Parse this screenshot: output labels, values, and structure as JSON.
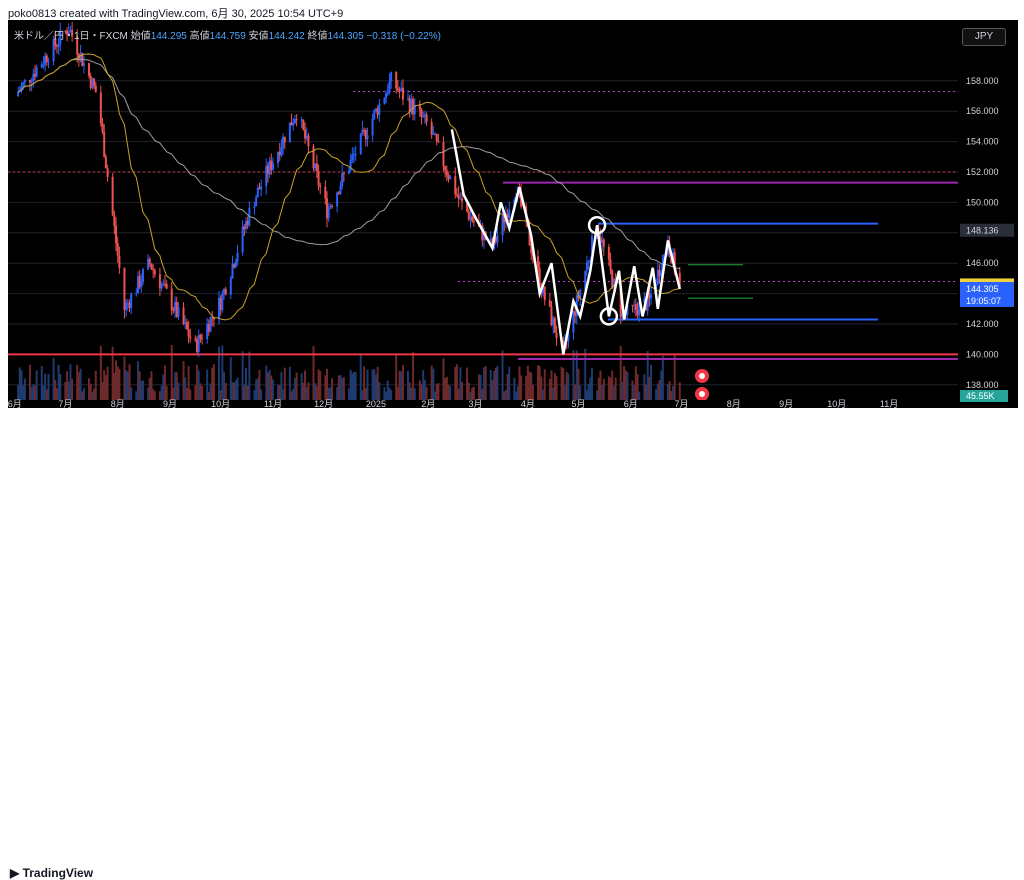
{
  "header": {
    "attribution": "poko0813 created with TradingView.com, 6月 30, 2025 10:54 UTC+9"
  },
  "legend": {
    "symbol": "米ドル／円・1日・FXCM",
    "open_label": "始値",
    "open": "144.295",
    "high_label": "高値",
    "high": "144.759",
    "low_label": "安値",
    "low": "144.242",
    "close_label": "終値",
    "close": "144.305",
    "change": "−0.318 (−0.22%)"
  },
  "currency_button": "JPY",
  "footer": {
    "brand": "TradingView"
  },
  "colors": {
    "up": "#2962ff",
    "down": "#ef5350",
    "ma_fast": "#c9a227",
    "ma_slow": "#9e9e9e",
    "zigzag": "#ffffff",
    "hline_red": "#f23645",
    "purple": "#9c27b0",
    "blue": "#2962ff",
    "green": "#26a641"
  },
  "chart_data": {
    "type": "candlestick",
    "symbol": "USD/JPY",
    "interval": "1D",
    "ylim": [
      137,
      162
    ],
    "y_ticks": [
      "158.000",
      "156.000",
      "154.000",
      "152.000",
      "150.000",
      "148.000",
      "146.000",
      "144.000",
      "142.000",
      "140.000",
      "138.000"
    ],
    "x_ticks": [
      "6月",
      "7月",
      "8月",
      "9月",
      "10月",
      "11月",
      "12月",
      "2025",
      "2月",
      "3月",
      "4月",
      "5月",
      "6月",
      "7月",
      "8月",
      "9月",
      "10月",
      "11月"
    ],
    "price_series": [
      {
        "date": "2024-06",
        "close": 157.0
      },
      {
        "date": "2024-07-03",
        "close": 161.5
      },
      {
        "date": "2024-07-20",
        "close": 157.0
      },
      {
        "date": "2024-08-05",
        "close": 143.0
      },
      {
        "date": "2024-08-20",
        "close": 146.0
      },
      {
        "date": "2024-09-16",
        "close": 140.5
      },
      {
        "date": "2024-10-01",
        "close": 143.5
      },
      {
        "date": "2024-10-20",
        "close": 150.0
      },
      {
        "date": "2024-11-15",
        "close": 156.0
      },
      {
        "date": "2024-12-03",
        "close": 149.5
      },
      {
        "date": "2025-01-10",
        "close": 158.0
      },
      {
        "date": "2025-02-01",
        "close": 155.0
      },
      {
        "date": "2025-02-20",
        "close": 150.0
      },
      {
        "date": "2025-03-11",
        "close": 147.0
      },
      {
        "date": "2025-03-25",
        "close": 151.0
      },
      {
        "date": "2025-04-10",
        "close": 144.0
      },
      {
        "date": "2025-04-22",
        "close": 140.0
      },
      {
        "date": "2025-05-12",
        "close": 148.5
      },
      {
        "date": "2025-05-27",
        "close": 142.5
      },
      {
        "date": "2025-06-12",
        "close": 143.5
      },
      {
        "date": "2025-06-23",
        "close": 147.5
      },
      {
        "date": "2025-06-30",
        "close": 144.3
      }
    ],
    "zigzag": [
      {
        "date": "2025-02-15",
        "y": 154.8
      },
      {
        "date": "2025-02-22",
        "y": 150.5
      },
      {
        "date": "2025-03-01",
        "y": 149.0
      },
      {
        "date": "2025-03-11",
        "y": 147.0
      },
      {
        "date": "2025-03-16",
        "y": 150.0
      },
      {
        "date": "2025-03-21",
        "y": 148.3
      },
      {
        "date": "2025-03-27",
        "y": 151.0
      },
      {
        "date": "2025-04-03",
        "y": 147.8
      },
      {
        "date": "2025-04-08",
        "y": 144.0
      },
      {
        "date": "2025-04-15",
        "y": 146.0
      },
      {
        "date": "2025-04-22",
        "y": 140.0
      },
      {
        "date": "2025-04-28",
        "y": 143.5
      },
      {
        "date": "2025-05-02",
        "y": 142.5
      },
      {
        "date": "2025-05-08",
        "y": 145.5
      },
      {
        "date": "2025-05-12",
        "y": 148.5
      },
      {
        "date": "2025-05-19",
        "y": 142.5
      },
      {
        "date": "2025-05-25",
        "y": 145.5
      },
      {
        "date": "2025-05-28",
        "y": 142.3
      },
      {
        "date": "2025-06-03",
        "y": 145.8
      },
      {
        "date": "2025-06-08",
        "y": 142.5
      },
      {
        "date": "2025-06-14",
        "y": 145.7
      },
      {
        "date": "2025-06-17",
        "y": 143.0
      },
      {
        "date": "2025-06-23",
        "y": 147.5
      },
      {
        "date": "2025-06-30",
        "y": 144.3
      }
    ],
    "horizontal_lines": [
      {
        "name": "red-dotted-top",
        "y": 152.0,
        "style": "dotted",
        "color": "#f23645"
      },
      {
        "name": "purple-resistance",
        "y": 151.3,
        "style": "solid",
        "color": "#9c27b0"
      },
      {
        "name": "blue-top",
        "y": 148.6,
        "style": "solid",
        "color": "#2962ff"
      },
      {
        "name": "blue-bottom",
        "y": 142.3,
        "style": "solid",
        "color": "#2962ff"
      },
      {
        "name": "red-support",
        "y": 140.0,
        "style": "solid",
        "color": "#f23645"
      },
      {
        "name": "purple-support",
        "y": 139.7,
        "style": "solid",
        "color": "#9c27b0"
      }
    ],
    "price_labels": [
      {
        "label": "148.136",
        "y": 148.136,
        "style": "grey"
      },
      {
        "label": "144.536",
        "y": 144.536,
        "style": "yellow"
      },
      {
        "label": "144.305",
        "y": 144.305,
        "style": "blue"
      }
    ],
    "countdown": "19:05:07",
    "volume_label": "45.55K"
  }
}
